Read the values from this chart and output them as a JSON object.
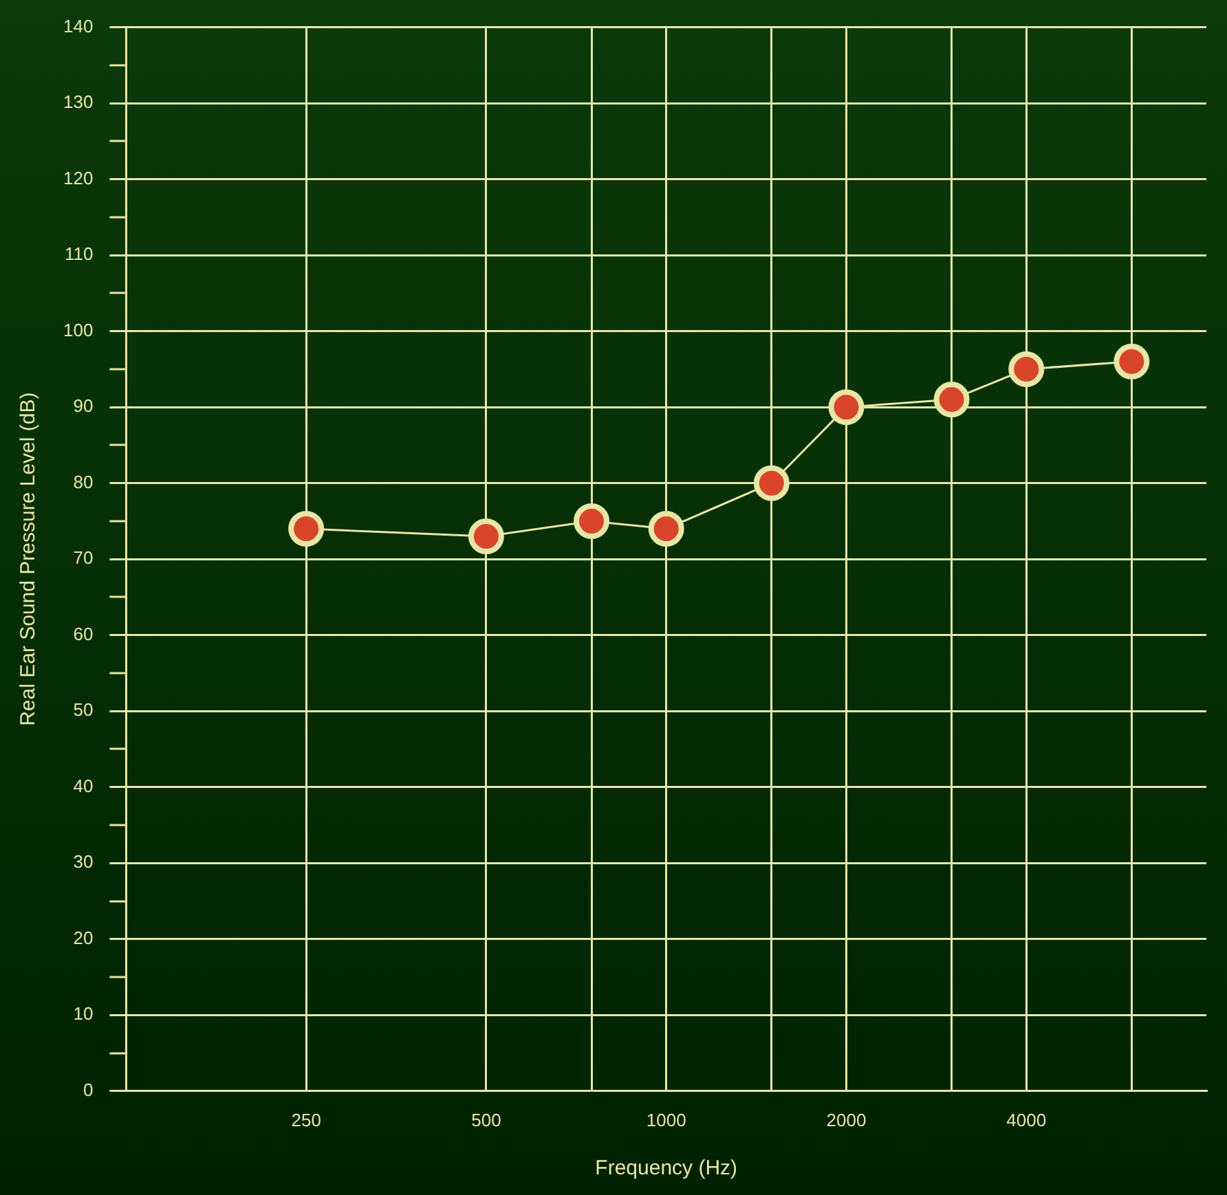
{
  "chart_data": {
    "type": "line",
    "xlabel": "Frequency (Hz)",
    "ylabel": "Real Ear Sound Pressure Level (dB)",
    "x": [
      250,
      500,
      750,
      1000,
      1500,
      2000,
      3000,
      4000,
      6000
    ],
    "series": [
      {
        "color": "#e8e6a6",
        "values": [
          74,
          73,
          75,
          74,
          80,
          90,
          91,
          95,
          96
        ]
      }
    ],
    "log": "x",
    "xlim": [
      125,
      8000
    ],
    "xticks": [
      {
        "value": 250,
        "label": "250"
      },
      {
        "value": 500,
        "label": "500"
      },
      {
        "value": 750,
        "label": null
      },
      {
        "value": 1000,
        "label": "1000"
      },
      {
        "value": 1500,
        "label": null
      },
      {
        "value": 2000,
        "label": "2000"
      },
      {
        "value": 3000,
        "label": null
      },
      {
        "value": 4000,
        "label": "4000"
      },
      {
        "value": 6000,
        "label": null
      }
    ],
    "ylim": [
      0,
      140
    ],
    "yticks": [
      0,
      {
        "value": 5,
        "label": null
      },
      10,
      {
        "value": 15,
        "label": null
      },
      20,
      {
        "value": 25,
        "label": null
      },
      30,
      {
        "value": 35,
        "label": null
      },
      40,
      {
        "value": 45,
        "label": null
      },
      50,
      {
        "value": 55,
        "label": null
      },
      60,
      {
        "value": 65,
        "label": null
      },
      70,
      {
        "value": 75,
        "label": null
      },
      80,
      {
        "value": 85,
        "label": null
      },
      90,
      {
        "value": 95,
        "label": null
      },
      100,
      {
        "value": 105,
        "label": null
      },
      110,
      {
        "value": 115,
        "label": null
      },
      120,
      {
        "value": 125,
        "label": null
      },
      130,
      {
        "value": 135,
        "label": null
      },
      140
    ],
    "grid": true,
    "legend": false,
    "marker": "circle",
    "line_style": "solid"
  }
}
